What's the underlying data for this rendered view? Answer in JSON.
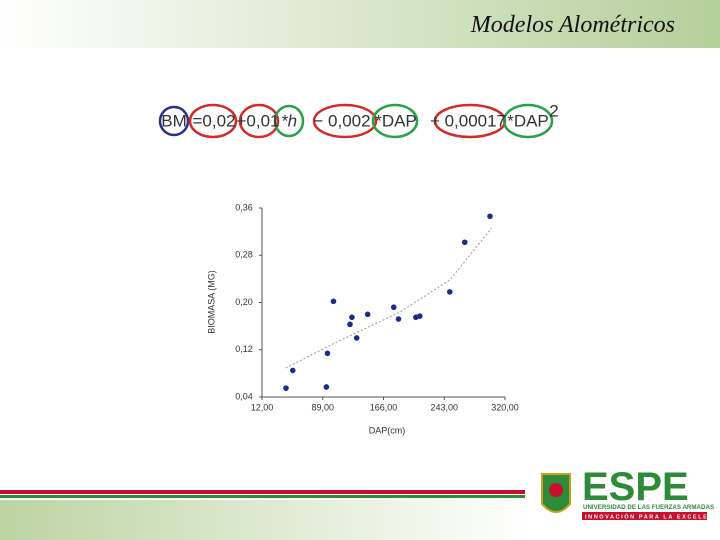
{
  "slide": {
    "title": "Modelos Alométricos",
    "equation": [
      "BM",
      "=0,02",
      "+0,01",
      "*h",
      "− 0,002",
      "*DAP",
      "+ 0,00017",
      "*DAP",
      "2"
    ],
    "logo": {
      "name": "ESPE",
      "line1": "UNIVERSIDAD DE LAS FUERZAS ARMADAS",
      "line2": "INNOVACIÓN PARA LA EXCELENCIA"
    }
  },
  "chart_data": {
    "type": "scatter",
    "x_label": "DAP(cm)",
    "y_label": "BIOMASA (MG)",
    "color": "#1f2a8a",
    "x": [
      42.4,
      51,
      93.6,
      95,
      102.6,
      123.5,
      126,
      132,
      146,
      179,
      185,
      207,
      212,
      250,
      269,
      301
    ],
    "values": [
      0.055,
      0.085,
      0.057,
      0.114,
      0.202,
      0.163,
      0.175,
      0.14,
      0.18,
      0.192,
      0.172,
      0.175,
      0.177,
      0.218,
      0.302,
      0.346
    ],
    "trend": {
      "x": [
        42,
        99,
        187,
        250,
        303
      ],
      "values": [
        0.089,
        0.128,
        0.184,
        0.238,
        0.326
      ],
      "color": "#999999"
    },
    "xlim": [
      12,
      320
    ],
    "ylim": [
      0.04,
      0.36
    ],
    "xticks": [
      {
        "value": 12,
        "label": "12,00"
      },
      {
        "value": 89,
        "label": "89,00"
      },
      {
        "value": 166,
        "label": "166,00"
      },
      {
        "value": 243,
        "label": "243,00"
      },
      {
        "value": 320,
        "label": "320,00"
      }
    ],
    "yticks": [
      {
        "value": 0.04,
        "label": "0,04"
      },
      {
        "value": 0.12,
        "label": "0,12"
      },
      {
        "value": 0.2,
        "label": "0,20"
      },
      {
        "value": 0.28,
        "label": "0,28"
      },
      {
        "value": 0.36,
        "label": "0,36"
      }
    ]
  }
}
